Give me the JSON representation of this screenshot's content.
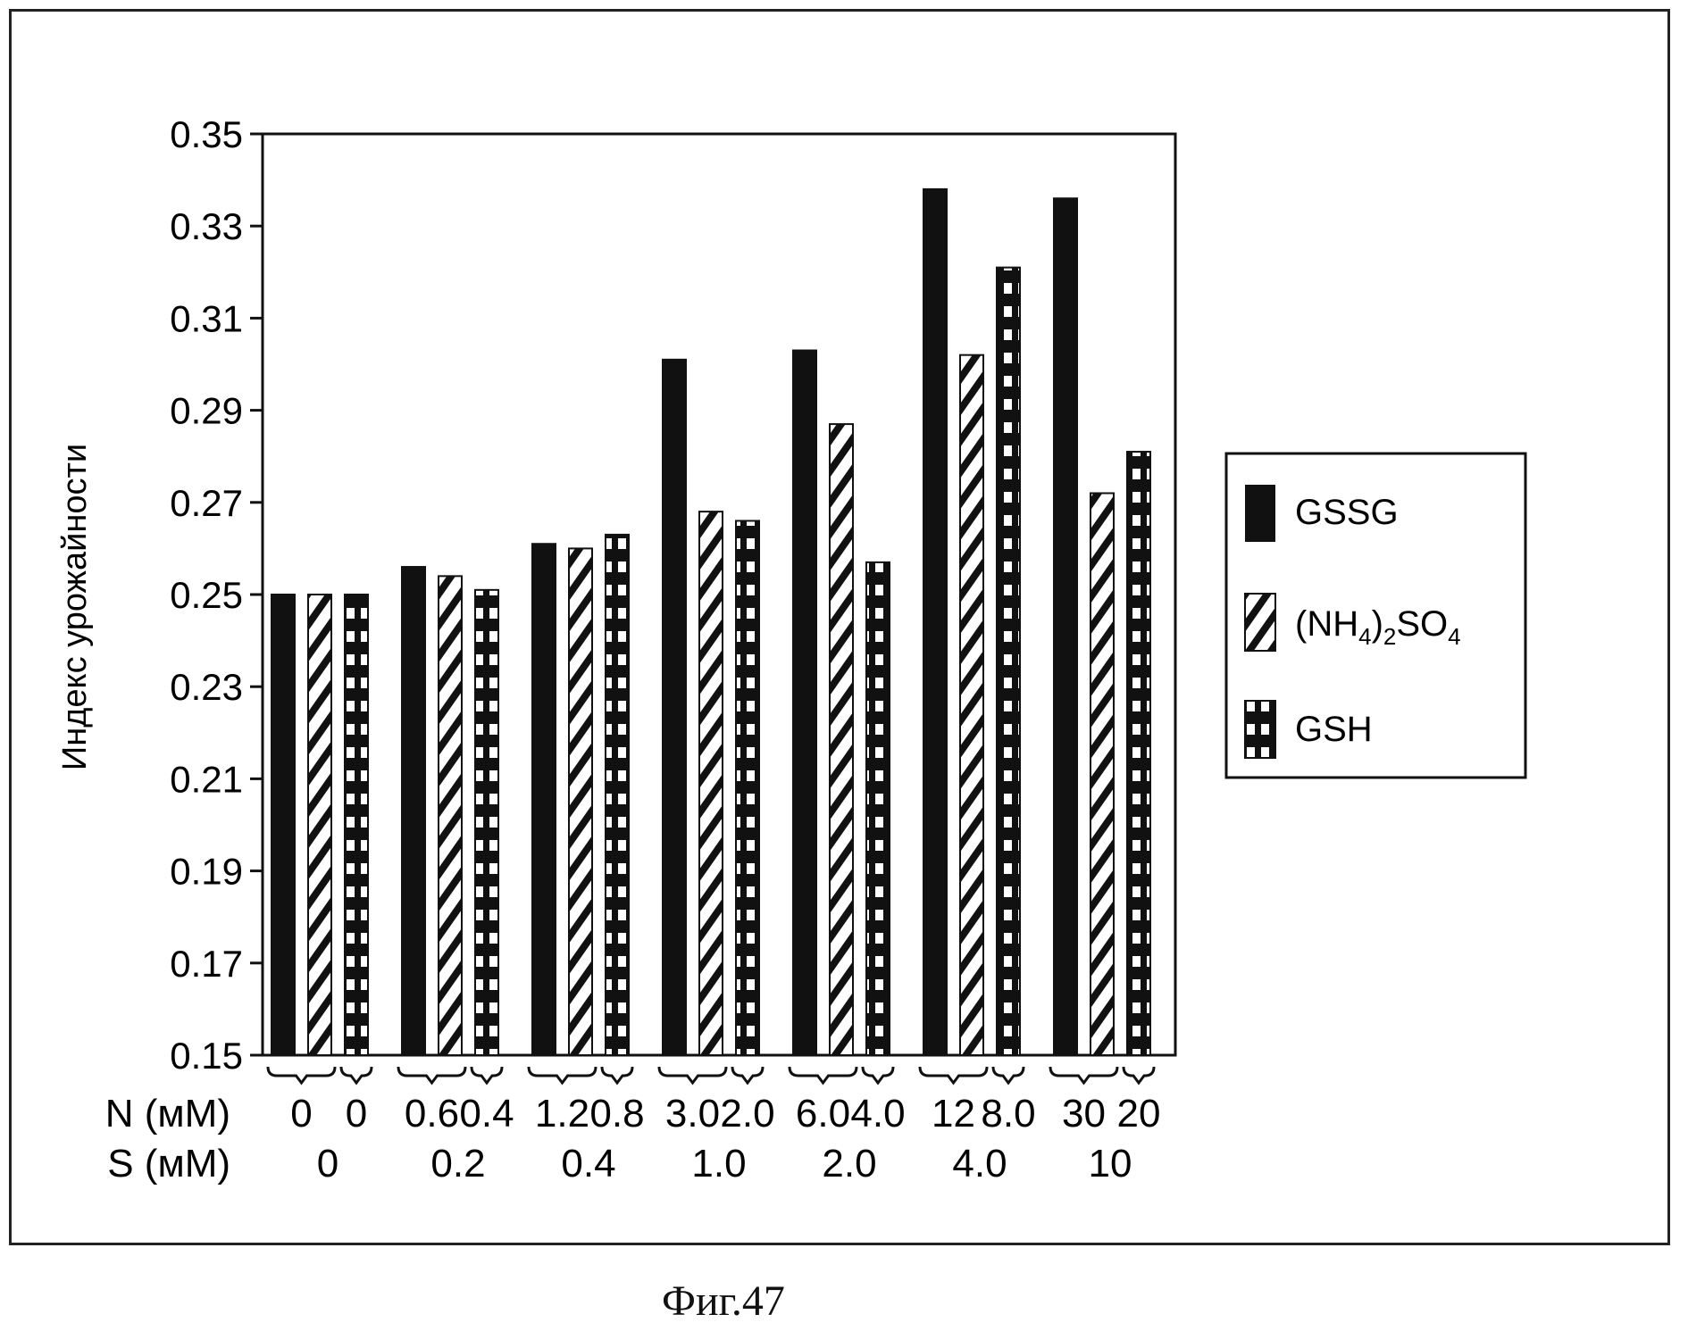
{
  "caption": "Фиг.47",
  "chart_data": {
    "type": "bar",
    "ylabel": "Индекс урожайности",
    "ylim": [
      0.15,
      0.35
    ],
    "yticks": [
      "0.15",
      "0.17",
      "0.19",
      "0.21",
      "0.23",
      "0.25",
      "0.27",
      "0.29",
      "0.31",
      "0.33",
      "0.35"
    ],
    "row_labels": {
      "n": "N (мМ)",
      "s": "S (мМ)"
    },
    "legend": {
      "gssg": "GSSG",
      "nh4": {
        "base": "(NH",
        "sub1": "4",
        "mid": ")",
        "sub2": "2",
        "base2": "SO",
        "sub3": "4"
      },
      "gsh": "GSH"
    },
    "groups": [
      {
        "s": "0",
        "gssg": 0.25,
        "nh4": 0.25,
        "gsh": 0.25,
        "n_gssg": "0",
        "n_gsh": "0"
      },
      {
        "s": "0.2",
        "gssg": 0.256,
        "nh4": 0.254,
        "gsh": 0.251,
        "n_gssg": "0.6",
        "n_gsh": "0.4"
      },
      {
        "s": "0.4",
        "gssg": 0.261,
        "nh4": 0.26,
        "gsh": 0.263,
        "n_gssg": "1.2",
        "n_gsh": "0.8"
      },
      {
        "s": "1.0",
        "gssg": 0.301,
        "nh4": 0.268,
        "gsh": 0.266,
        "n_gssg": "3.0",
        "n_gsh": "2.0"
      },
      {
        "s": "2.0",
        "gssg": 0.303,
        "nh4": 0.287,
        "gsh": 0.257,
        "n_gssg": "6.0",
        "n_gsh": "4.0"
      },
      {
        "s": "4.0",
        "gssg": 0.338,
        "nh4": 0.302,
        "gsh": 0.321,
        "n_gssg": "12",
        "n_gsh": "8.0"
      },
      {
        "s": "10",
        "gssg": 0.336,
        "nh4": 0.272,
        "gsh": 0.281,
        "n_gssg": "30",
        "n_gsh": "20"
      }
    ]
  }
}
